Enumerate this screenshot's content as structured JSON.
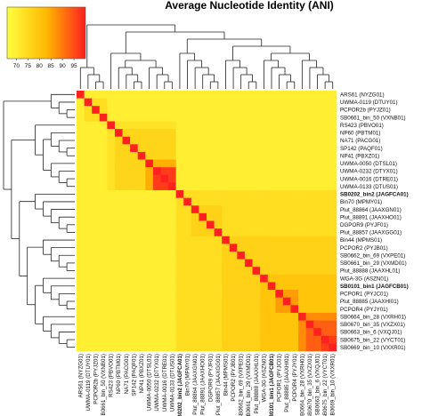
{
  "chart_data": {
    "type": "heatmap",
    "title": "Average Nucleotide Identity (ANI)",
    "colorbar": {
      "ticks": [
        70,
        75,
        80,
        85,
        90,
        95
      ],
      "range": [
        66,
        100
      ],
      "colors": [
        "#ffff40",
        "#ffb800",
        "#ff2020"
      ]
    },
    "labels": [
      {
        "text": "ARS61 (NYZG01)",
        "bold": false
      },
      {
        "text": "UWMA-0119 (DTUY01)",
        "bold": false
      },
      {
        "text": "PCPOR2b (PYJZ01)",
        "bold": false
      },
      {
        "text": "SB0661_bin_50 (VXNB01)",
        "bold": false
      },
      {
        "text": "RS423 (PBVO01)",
        "bold": false
      },
      {
        "text": "NP60 (PBTM01)",
        "bold": false
      },
      {
        "text": "NA71 (PACG01)",
        "bold": false
      },
      {
        "text": "SP142 (PAQF01)",
        "bold": false
      },
      {
        "text": "NP41 (PBXZ01)",
        "bold": false
      },
      {
        "text": "UWMA-0050 (DTSL01)",
        "bold": false
      },
      {
        "text": "UWMA-0232 (DTYX01)",
        "bold": false
      },
      {
        "text": "UWMA-0016 (DTRE01)",
        "bold": false
      },
      {
        "text": "UWMA-0133 (DTUS01)",
        "bold": false
      },
      {
        "text": "SB0202_bin2 (JAGFCA01)",
        "bold": true
      },
      {
        "text": "Bin70 (MPMY01)",
        "bold": false
      },
      {
        "text": "Plut_88864 (JAAXGN01)",
        "bold": false
      },
      {
        "text": "Plut_88891 (JAAXHO01)",
        "bold": false
      },
      {
        "text": "DGPOR9 (PYJF01)",
        "bold": false
      },
      {
        "text": "Plut_88857 (JAAXGG01)",
        "bold": false
      },
      {
        "text": "Bin44 (MPMS01)",
        "bold": false
      },
      {
        "text": "PCPOR2 (PYJB01)",
        "bold": false
      },
      {
        "text": "SB0662_bin_69 (VXPE01)",
        "bold": false
      },
      {
        "text": "SB0661_bin_29 (VXMD01)",
        "bold": false
      },
      {
        "text": "Plut_88888 (JAAXHL01)",
        "bold": false
      },
      {
        "text": "WGA-3G (ASZN01)",
        "bold": false
      },
      {
        "text": "SB0101_bin1 (JAGFCB01)",
        "bold": true
      },
      {
        "text": "PCPOR1 (PYJC01)",
        "bold": false
      },
      {
        "text": "Plut_88885 (JAAXHI01)",
        "bold": false
      },
      {
        "text": "PCPOR4 (PYJY01)",
        "bold": false
      },
      {
        "text": "SB0664_bin_28 (VXRH01)",
        "bold": false
      },
      {
        "text": "SB0670_bin_35 (VXZX01)",
        "bold": false
      },
      {
        "text": "SB0663_bin_6 (VXQJ01)",
        "bold": false
      },
      {
        "text": "SB0675_bin_22 (VYCT01)",
        "bold": false
      },
      {
        "text": "SB0669_bin_10 (VXXR01)",
        "bold": false
      }
    ],
    "blocks": [
      {
        "rows": [
          0,
          33
        ],
        "cols": [
          0,
          33
        ],
        "value": 70
      },
      {
        "rows": [
          1,
          3
        ],
        "cols": [
          1,
          3
        ],
        "value": 74
      },
      {
        "rows": [
          4,
          12
        ],
        "cols": [
          4,
          12
        ],
        "value": 73
      },
      {
        "rows": [
          5,
          12
        ],
        "cols": [
          5,
          12
        ],
        "value": 76
      },
      {
        "rows": [
          9,
          12
        ],
        "cols": [
          9,
          12
        ],
        "value": 84
      },
      {
        "rows": [
          10,
          12
        ],
        "cols": [
          10,
          12
        ],
        "value": 97
      },
      {
        "rows": [
          13,
          33
        ],
        "cols": [
          13,
          33
        ],
        "value": 74
      },
      {
        "rows": [
          15,
          18
        ],
        "cols": [
          15,
          18
        ],
        "value": 77
      },
      {
        "rows": [
          19,
          33
        ],
        "cols": [
          19,
          33
        ],
        "value": 77
      },
      {
        "rows": [
          24,
          33
        ],
        "cols": [
          24,
          33
        ],
        "value": 80
      },
      {
        "rows": [
          26,
          28
        ],
        "cols": [
          26,
          28
        ],
        "value": 86
      },
      {
        "rows": [
          29,
          33
        ],
        "cols": [
          29,
          33
        ],
        "value": 88
      },
      {
        "rows": [
          30,
          33
        ],
        "cols": [
          30,
          33
        ],
        "value": 93
      },
      {
        "rows": [
          32,
          33
        ],
        "cols": [
          32,
          33
        ],
        "value": 97
      }
    ],
    "diagonal_value": 100,
    "grid": false
  }
}
